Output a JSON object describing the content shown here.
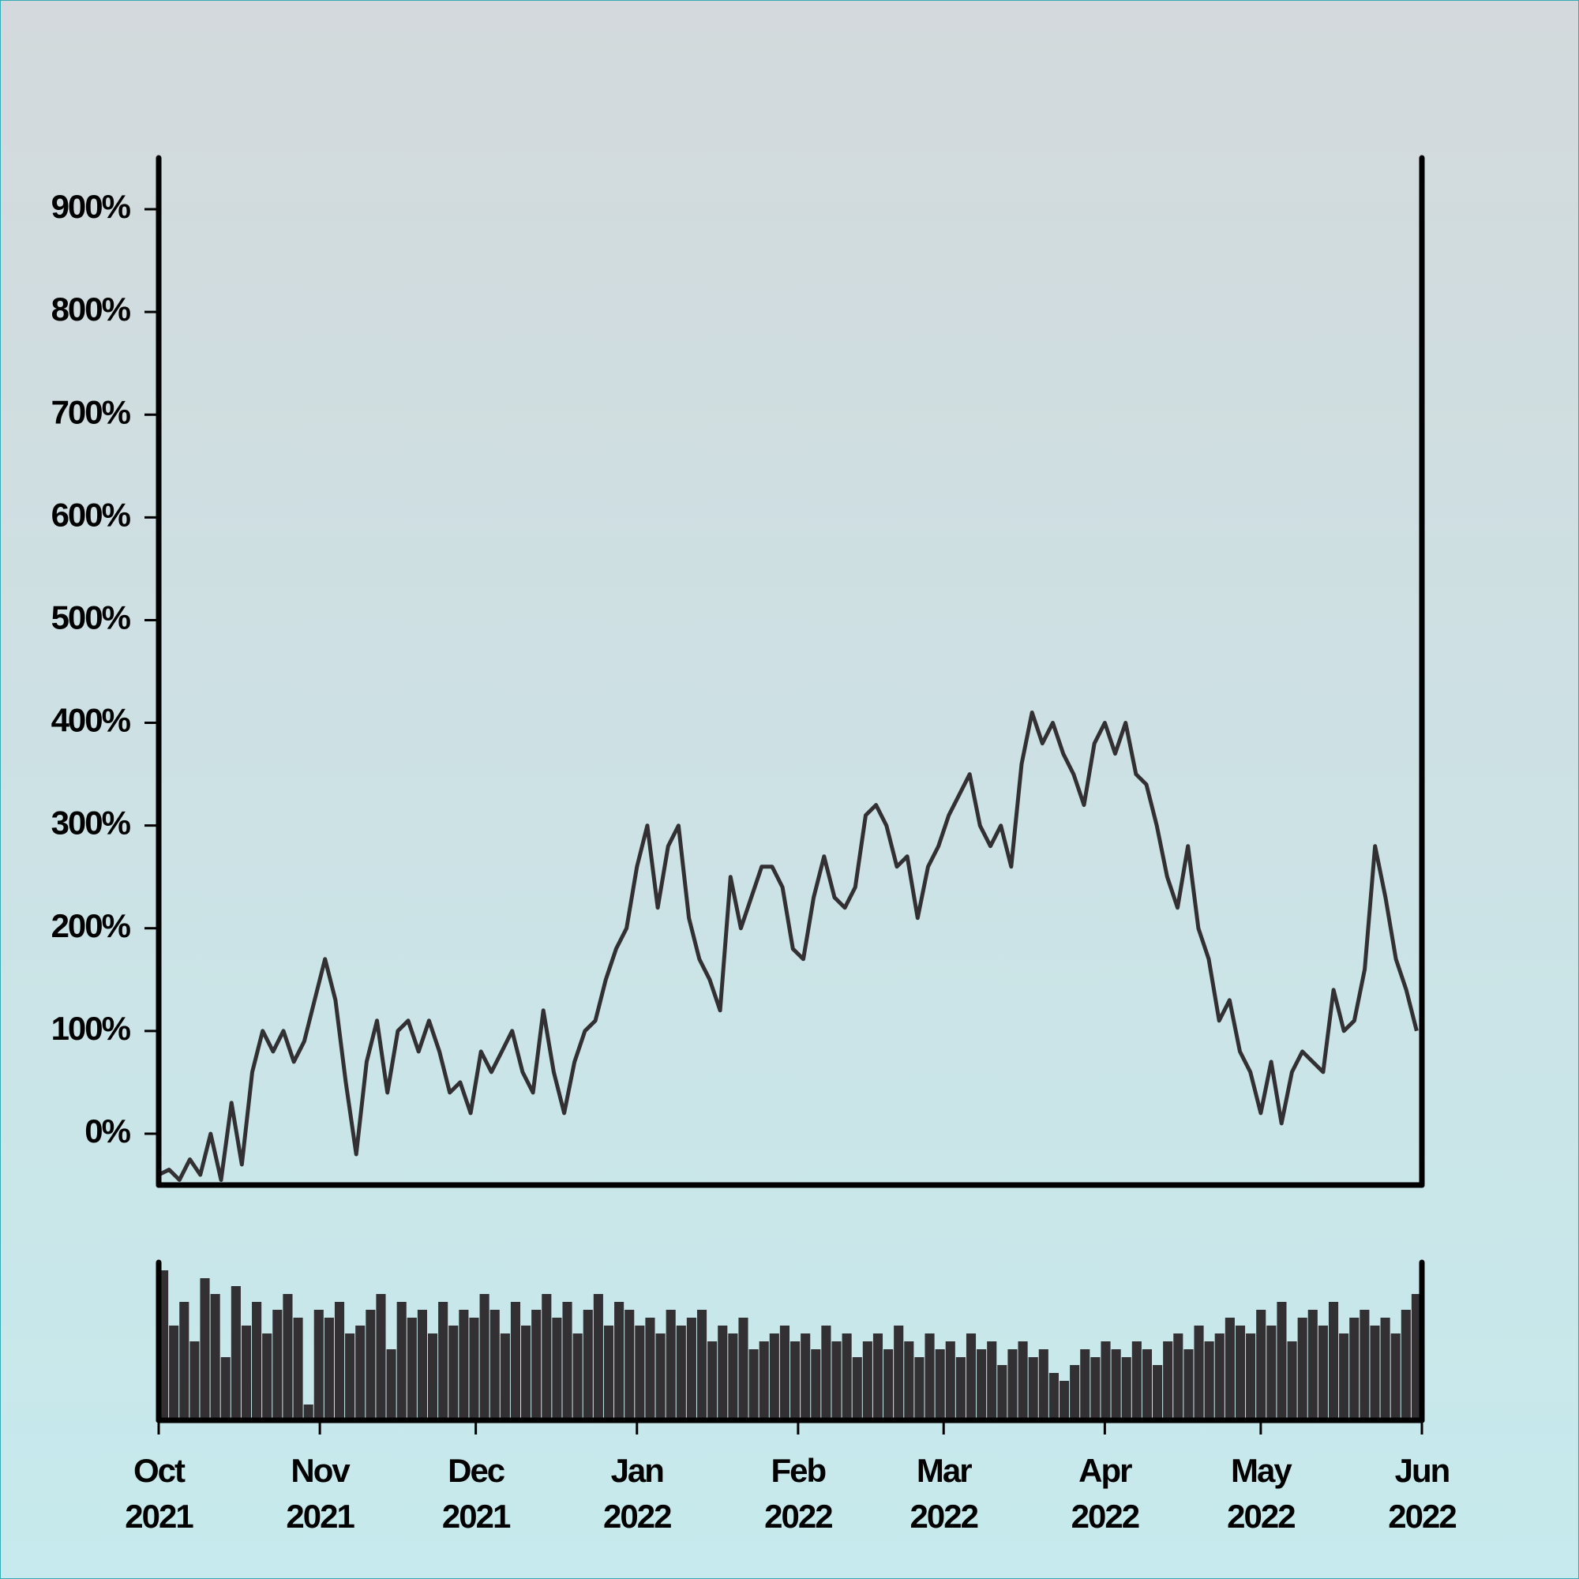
{
  "chart_data": [
    {
      "type": "line",
      "color": "#333033",
      "values": [
        -40,
        -35,
        -45,
        -25,
        -40,
        0,
        -45,
        30,
        -30,
        60,
        100,
        80,
        100,
        70,
        90,
        130,
        170,
        130,
        50,
        -20,
        70,
        110,
        40,
        100,
        110,
        80,
        110,
        80,
        40,
        50,
        20,
        80,
        60,
        80,
        100,
        60,
        40,
        120,
        60,
        20,
        70,
        100,
        110,
        150,
        180,
        200,
        260,
        300,
        220,
        280,
        300,
        210,
        170,
        150,
        120,
        250,
        200,
        230,
        260,
        260,
        240,
        180,
        170,
        230,
        270,
        230,
        220,
        240,
        310,
        320,
        300,
        260,
        270,
        210,
        260,
        280,
        310,
        330,
        350,
        300,
        280,
        300,
        260,
        360,
        410,
        380,
        400,
        370,
        350,
        320,
        380,
        400,
        370,
        400,
        350,
        340,
        300,
        250,
        220,
        280,
        200,
        170,
        110,
        130,
        80,
        60,
        20,
        70,
        10,
        60,
        80,
        70,
        60,
        140,
        100,
        110,
        160,
        280,
        230,
        170,
        140,
        100
      ],
      "xlim": [
        0,
        121.5
      ],
      "ylim": [
        -50,
        950
      ],
      "yticks": [
        {
          "value": 0,
          "label": "0%"
        },
        {
          "value": 100,
          "label": "100%"
        },
        {
          "value": 200,
          "label": "200%"
        },
        {
          "value": 300,
          "label": "300%"
        },
        {
          "value": 400,
          "label": "400%"
        },
        {
          "value": 500,
          "label": "500%"
        },
        {
          "value": 600,
          "label": "600%"
        },
        {
          "value": 700,
          "label": "700%"
        },
        {
          "value": 800,
          "label": "800%"
        },
        {
          "value": 900,
          "label": "900%"
        }
      ]
    },
    {
      "type": "bar",
      "color": "#333033",
      "values": [
        95,
        60,
        75,
        50,
        90,
        80,
        40,
        85,
        60,
        75,
        55,
        70,
        80,
        65,
        10,
        70,
        65,
        75,
        55,
        60,
        70,
        80,
        45,
        75,
        65,
        70,
        55,
        75,
        60,
        70,
        65,
        80,
        70,
        55,
        75,
        60,
        70,
        80,
        65,
        75,
        55,
        70,
        80,
        60,
        75,
        70,
        60,
        65,
        55,
        70,
        60,
        65,
        70,
        50,
        60,
        55,
        65,
        45,
        50,
        55,
        60,
        50,
        55,
        45,
        60,
        50,
        55,
        40,
        50,
        55,
        45,
        60,
        50,
        40,
        55,
        45,
        50,
        40,
        55,
        45,
        50,
        35,
        45,
        50,
        40,
        45,
        30,
        25,
        35,
        45,
        40,
        50,
        45,
        40,
        50,
        45,
        35,
        50,
        55,
        45,
        60,
        50,
        55,
        65,
        60,
        55,
        70,
        60,
        75,
        50,
        65,
        70,
        60,
        75,
        55,
        65,
        70,
        60,
        65,
        55,
        70,
        80
      ],
      "xlim": [
        0,
        121.5
      ],
      "ylim": [
        0,
        100
      ],
      "xticks": [
        {
          "value": 0,
          "label": "Oct 2021"
        },
        {
          "value": 15.5,
          "label": "Nov 2021"
        },
        {
          "value": 30.5,
          "label": "Dec 2021"
        },
        {
          "value": 46,
          "label": "Jan 2022"
        },
        {
          "value": 61.5,
          "label": "Feb 2022"
        },
        {
          "value": 75.5,
          "label": "Mar 2022"
        },
        {
          "value": 91,
          "label": "Apr 2022"
        },
        {
          "value": 106,
          "label": "May 2022"
        },
        {
          "value": 121.5,
          "label": "Jun 2022"
        }
      ]
    }
  ]
}
